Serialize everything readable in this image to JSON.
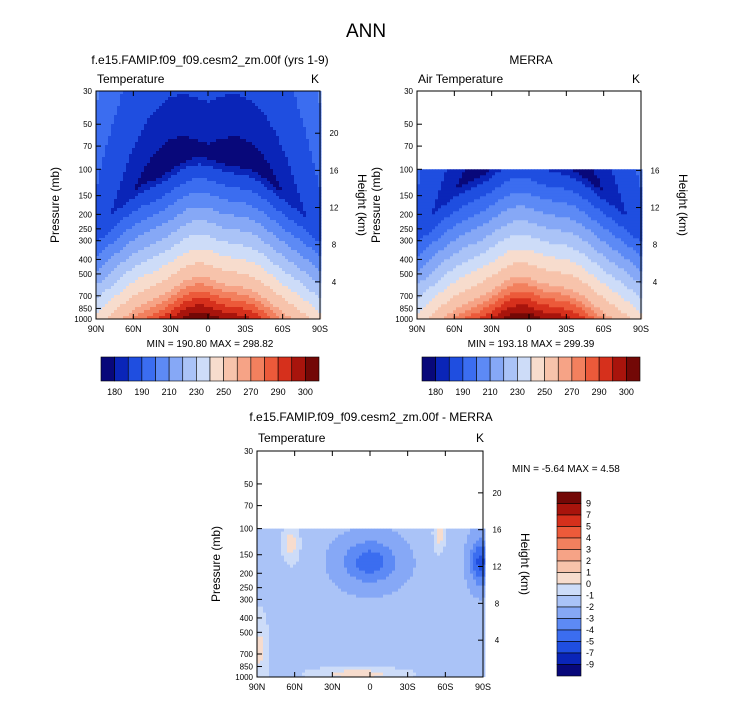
{
  "figure_title": "ANN",
  "chart_data": [
    {
      "type": "heatmap",
      "title": "f.e15.FAMIP.f09_f09.cesm2_zm.00f (yrs 1-9)",
      "left_string": "Temperature",
      "right_string": "K",
      "ylabel": "Pressure (mb)",
      "ylabel_right": "Height (km)",
      "x_ticks": [
        "90N",
        "60N",
        "30N",
        "0",
        "30S",
        "60S",
        "90S"
      ],
      "pressure_ticks": [
        "30",
        "50",
        "70",
        "100",
        "150",
        "200",
        "250",
        "300",
        "400",
        "500",
        "700",
        "850",
        "1000"
      ],
      "height_ticks": [
        "20",
        "16",
        "12",
        "8",
        "4"
      ],
      "min_max_text": "MIN = 190.80   MAX = 298.82",
      "min": 190.8,
      "max": 298.82,
      "field": "model_T",
      "top_pressure": 30,
      "colorbar_labels": [
        "180",
        "190",
        "210",
        "230",
        "250",
        "270",
        "290",
        "300"
      ]
    },
    {
      "type": "heatmap",
      "title": "MERRA",
      "left_string": "Air Temperature",
      "right_string": "K",
      "ylabel": "Pressure (mb)",
      "ylabel_right": "Height (km)",
      "x_ticks": [
        "90N",
        "60N",
        "30N",
        "0",
        "30S",
        "60S",
        "90S"
      ],
      "pressure_ticks": [
        "30",
        "50",
        "70",
        "100",
        "150",
        "200",
        "250",
        "300",
        "400",
        "500",
        "700",
        "850",
        "1000"
      ],
      "height_ticks": [
        "16",
        "12",
        "8",
        "4"
      ],
      "min_max_text": "MIN = 193.18   MAX = 299.39",
      "min": 193.18,
      "max": 299.39,
      "field": "merra_T",
      "top_pressure": 100,
      "colorbar_labels": [
        "180",
        "190",
        "210",
        "230",
        "250",
        "270",
        "290",
        "300"
      ]
    },
    {
      "type": "heatmap",
      "title": "f.e15.FAMIP.f09_f09.cesm2_zm.00f - MERRA",
      "left_string": "Temperature",
      "right_string": "K",
      "ylabel": "Pressure (mb)",
      "ylabel_right": "Height (km)",
      "x_ticks": [
        "90N",
        "60N",
        "30N",
        "0",
        "30S",
        "60S",
        "90S"
      ],
      "pressure_ticks": [
        "30",
        "50",
        "70",
        "100",
        "150",
        "200",
        "250",
        "300",
        "400",
        "500",
        "700",
        "850",
        "1000"
      ],
      "height_ticks": [
        "20",
        "16",
        "12",
        "8",
        "4"
      ],
      "min_max_text": "MIN =  -5.64   MAX =   4.58",
      "min": -5.64,
      "max": 4.58,
      "field": "diff_T",
      "top_pressure": 100,
      "colorbar_labels": [
        "9",
        "7",
        "5",
        "4",
        "3",
        "2",
        "1",
        "0",
        "-1",
        "-2",
        "-3",
        "-4",
        "-5",
        "-7",
        "-9"
      ]
    }
  ],
  "colors": {
    "temp_scale": [
      "#08087a",
      "#0a25b8",
      "#1f4ee0",
      "#3b6df0",
      "#5d8af5",
      "#86a8f6",
      "#aac3f7",
      "#cddcf8",
      "#f7dccd",
      "#f7c3ab",
      "#f6a386",
      "#f2805e",
      "#ec5a3a",
      "#d6301c",
      "#a8140c",
      "#730806"
    ],
    "diff_scale": [
      "#730806",
      "#a8140c",
      "#d6301c",
      "#ec5a3a",
      "#f2805e",
      "#f6a386",
      "#f7c3ab",
      "#f7dccd",
      "#cddcf8",
      "#aac3f7",
      "#86a8f6",
      "#5d8af5",
      "#3b6df0",
      "#1f4ee0",
      "#0a25b8",
      "#08087a"
    ]
  }
}
